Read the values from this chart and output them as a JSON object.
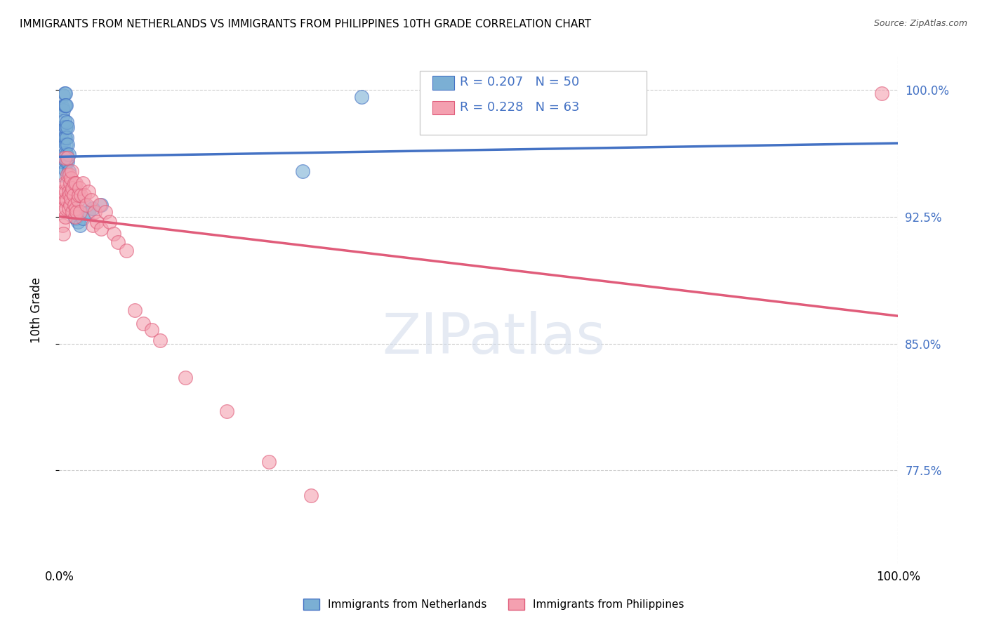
{
  "title": "IMMIGRANTS FROM NETHERLANDS VS IMMIGRANTS FROM PHILIPPINES 10TH GRADE CORRELATION CHART",
  "source": "Source: ZipAtlas.com",
  "ylabel": "10th Grade",
  "xlim": [
    0.0,
    1.0
  ],
  "ylim": [
    0.72,
    1.02
  ],
  "legend_R_blue": "0.207",
  "legend_N_blue": "50",
  "legend_R_pink": "0.228",
  "legend_N_pink": "63",
  "legend_label_blue": "Immigrants from Netherlands",
  "legend_label_pink": "Immigrants from Philippines",
  "color_blue": "#7bafd4",
  "color_pink": "#f4a0b0",
  "line_color_blue": "#4472c4",
  "line_color_pink": "#e05c7a",
  "netherlands_x": [
    0.002,
    0.003,
    0.003,
    0.004,
    0.004,
    0.004,
    0.005,
    0.005,
    0.005,
    0.005,
    0.005,
    0.006,
    0.006,
    0.006,
    0.006,
    0.007,
    0.007,
    0.007,
    0.007,
    0.007,
    0.007,
    0.008,
    0.008,
    0.008,
    0.008,
    0.009,
    0.009,
    0.009,
    0.01,
    0.01,
    0.01,
    0.011,
    0.011,
    0.012,
    0.013,
    0.014,
    0.015,
    0.016,
    0.018,
    0.019,
    0.02,
    0.022,
    0.025,
    0.028,
    0.03,
    0.035,
    0.04,
    0.05,
    0.29,
    0.36
  ],
  "netherlands_y": [
    0.95,
    0.975,
    0.96,
    0.985,
    0.99,
    0.97,
    0.997,
    0.988,
    0.978,
    0.968,
    0.958,
    0.998,
    0.991,
    0.982,
    0.972,
    0.998,
    0.991,
    0.978,
    0.972,
    0.963,
    0.953,
    0.991,
    0.978,
    0.968,
    0.958,
    0.981,
    0.972,
    0.962,
    0.978,
    0.968,
    0.958,
    0.962,
    0.952,
    0.942,
    0.938,
    0.932,
    0.938,
    0.932,
    0.925,
    0.928,
    0.924,
    0.922,
    0.92,
    0.924,
    0.932,
    0.928,
    0.93,
    0.932,
    0.952,
    0.996
  ],
  "philippines_x": [
    0.003,
    0.004,
    0.004,
    0.005,
    0.005,
    0.006,
    0.006,
    0.007,
    0.007,
    0.008,
    0.008,
    0.009,
    0.009,
    0.01,
    0.01,
    0.011,
    0.011,
    0.012,
    0.012,
    0.013,
    0.013,
    0.014,
    0.014,
    0.015,
    0.015,
    0.016,
    0.016,
    0.017,
    0.018,
    0.018,
    0.019,
    0.02,
    0.02,
    0.021,
    0.022,
    0.023,
    0.024,
    0.025,
    0.026,
    0.028,
    0.03,
    0.032,
    0.035,
    0.038,
    0.04,
    0.042,
    0.045,
    0.048,
    0.05,
    0.055,
    0.06,
    0.065,
    0.07,
    0.08,
    0.09,
    0.1,
    0.11,
    0.12,
    0.15,
    0.2,
    0.25,
    0.3,
    0.98
  ],
  "philippines_y": [
    0.935,
    0.94,
    0.92,
    0.93,
    0.915,
    0.945,
    0.96,
    0.935,
    0.925,
    0.94,
    0.93,
    0.945,
    0.935,
    0.96,
    0.95,
    0.94,
    0.93,
    0.95,
    0.938,
    0.945,
    0.932,
    0.948,
    0.936,
    0.952,
    0.94,
    0.942,
    0.928,
    0.938,
    0.945,
    0.932,
    0.925,
    0.93,
    0.945,
    0.928,
    0.935,
    0.938,
    0.942,
    0.928,
    0.938,
    0.945,
    0.938,
    0.932,
    0.94,
    0.935,
    0.92,
    0.928,
    0.922,
    0.932,
    0.918,
    0.928,
    0.922,
    0.915,
    0.91,
    0.905,
    0.87,
    0.862,
    0.858,
    0.852,
    0.83,
    0.81,
    0.78,
    0.76,
    0.998
  ]
}
